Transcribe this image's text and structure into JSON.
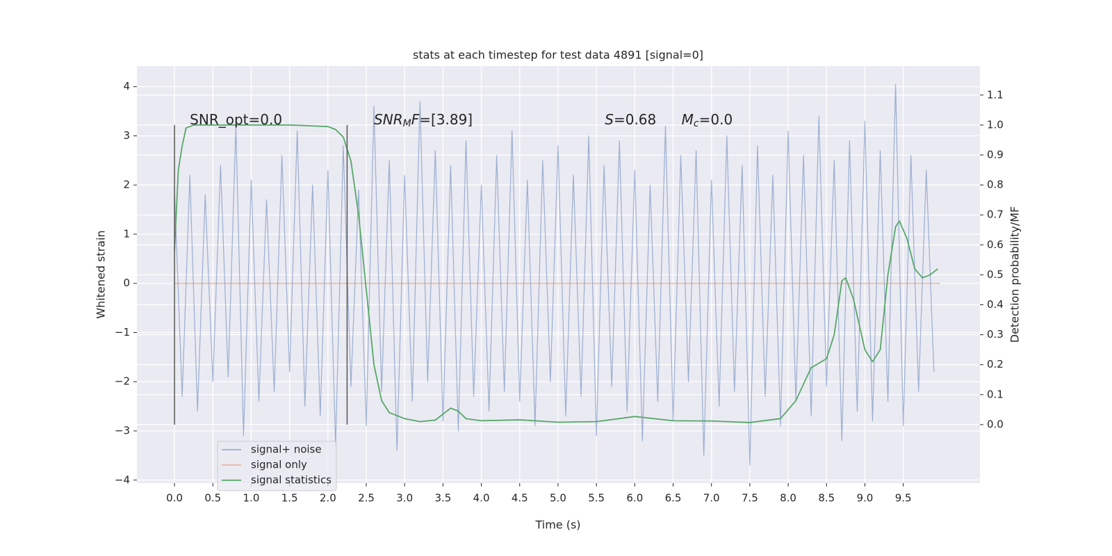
{
  "chart_data": {
    "type": "line",
    "title": "stats at each timestep for test data 4891 [signal=0]",
    "xlabel": "Time (s)",
    "ylabel": "Whitened strain",
    "y2label": "Detection probability/MF",
    "xlim": [
      -0.49,
      10.5
    ],
    "ylim": [
      -4.06,
      4.42
    ],
    "y2lim": [
      -0.195,
      1.197
    ],
    "grid": true,
    "legend": "lower left",
    "xticks": [
      {
        "value": 0,
        "label": "0.0"
      },
      {
        "value": 0.5,
        "label": "0.5"
      },
      {
        "value": 1,
        "label": "1.0"
      },
      {
        "value": 1.5,
        "label": "1.5"
      },
      {
        "value": 2,
        "label": "2.0"
      },
      {
        "value": 2.5,
        "label": "2.5"
      },
      {
        "value": 3,
        "label": "3.0"
      },
      {
        "value": 3.5,
        "label": "3.5"
      },
      {
        "value": 4,
        "label": "4.0"
      },
      {
        "value": 4.5,
        "label": "4.5"
      },
      {
        "value": 5,
        "label": "5.0"
      },
      {
        "value": 5.5,
        "label": "5.5"
      },
      {
        "value": 6,
        "label": "6.0"
      },
      {
        "value": 6.5,
        "label": "6.5"
      },
      {
        "value": 7,
        "label": "7.0"
      },
      {
        "value": 7.5,
        "label": "7.5"
      },
      {
        "value": 8,
        "label": "8.0"
      },
      {
        "value": 8.5,
        "label": "8.5"
      },
      {
        "value": 9,
        "label": "9.0"
      },
      {
        "value": 9.5,
        "label": "9.5"
      }
    ],
    "yticks": [
      {
        "value": -4,
        "label": "−4"
      },
      {
        "value": -3,
        "label": "−3"
      },
      {
        "value": -2,
        "label": "−2"
      },
      {
        "value": -1,
        "label": "−1"
      },
      0,
      1,
      2,
      3,
      4
    ],
    "y2ticks": [
      {
        "value": 0,
        "label": "0.0"
      },
      {
        "value": 0.1,
        "label": "0.1"
      },
      {
        "value": 0.2,
        "label": "0.2"
      },
      {
        "value": 0.3,
        "label": "0.3"
      },
      {
        "value": 0.4,
        "label": "0.4"
      },
      {
        "value": 0.5,
        "label": "0.5"
      },
      {
        "value": 0.6,
        "label": "0.6"
      },
      {
        "value": 0.7,
        "label": "0.7"
      },
      {
        "value": 0.8,
        "label": "0.8"
      },
      {
        "value": 0.9,
        "label": "0.9"
      },
      {
        "value": 1,
        "label": "1.0"
      },
      {
        "value": 1.1,
        "label": "1.1"
      }
    ],
    "series": [
      {
        "name": "signal+ noise",
        "color": "#4c72b0",
        "alpha": 0.5,
        "x": [
          0,
          0.1,
          0.2,
          0.3,
          0.4,
          0.5,
          0.6,
          0.7,
          0.8,
          0.9,
          1,
          1.1,
          1.2,
          1.3,
          1.4,
          1.5,
          1.6,
          1.7,
          1.8,
          1.9,
          2,
          2.1,
          2.2,
          2.3,
          2.4,
          2.5,
          2.6,
          2.7,
          2.8,
          2.9,
          3,
          3.1,
          3.2,
          3.3,
          3.4,
          3.5,
          3.6,
          3.7,
          3.8,
          3.9,
          4,
          4.1,
          4.2,
          4.3,
          4.4,
          4.5,
          4.6,
          4.7,
          4.8,
          4.9,
          5,
          5.1,
          5.2,
          5.3,
          5.4,
          5.5,
          5.6,
          5.7,
          5.8,
          5.9,
          6,
          6.1,
          6.2,
          6.3,
          6.4,
          6.5,
          6.6,
          6.7,
          6.8,
          6.9,
          7,
          7.1,
          7.2,
          7.3,
          7.4,
          7.5,
          7.6,
          7.7,
          7.8,
          7.9,
          8,
          8.1,
          8.2,
          8.3,
          8.4,
          8.5,
          8.6,
          8.7,
          8.8,
          8.9,
          9,
          9.1,
          9.2,
          9.3,
          9.4,
          9.5,
          9.6,
          9.7,
          9.8,
          9.9
        ],
        "values": [
          1.9,
          -2.3,
          2.2,
          -2.6,
          1.8,
          -2.0,
          2.4,
          -1.9,
          3.2,
          -3.1,
          2.1,
          -2.4,
          1.7,
          -2.2,
          2.6,
          -1.8,
          3.1,
          -2.5,
          2.0,
          -2.7,
          2.3,
          -3.3,
          2.8,
          -2.1,
          1.9,
          -2.9,
          3.6,
          -2.2,
          2.5,
          -3.4,
          2.2,
          -2.4,
          3.7,
          -2.0,
          2.7,
          -2.8,
          2.4,
          -3.0,
          2.9,
          -2.3,
          2.0,
          -2.6,
          2.6,
          -2.2,
          3.1,
          -2.4,
          2.1,
          -2.9,
          2.5,
          -2.0,
          2.8,
          -2.7,
          2.2,
          -2.3,
          3.0,
          -3.1,
          2.4,
          -2.1,
          2.9,
          -2.6,
          2.3,
          -3.2,
          2.0,
          -2.4,
          3.2,
          -2.8,
          2.6,
          -2.0,
          2.7,
          -3.5,
          2.1,
          -2.5,
          3.0,
          -2.2,
          2.4,
          -3.7,
          2.8,
          -2.3,
          2.2,
          -2.9,
          3.1,
          -2.4,
          2.6,
          -2.7,
          3.4,
          -2.1,
          2.5,
          -3.2,
          2.9,
          -2.6,
          3.3,
          -2.8,
          2.7,
          -2.4,
          4.05,
          -2.9,
          2.6,
          -2.2,
          2.3,
          -1.8
        ]
      },
      {
        "name": "signal only",
        "color": "#dd8452",
        "alpha": 0.5,
        "x": [
          0,
          9.98
        ],
        "values": [
          0,
          0
        ]
      },
      {
        "name": "signal statistics",
        "color": "#55a868",
        "alpha": 1,
        "axis": "y2",
        "x": [
          0,
          0.05,
          0.1,
          0.15,
          0.25,
          0.5,
          1,
          1.5,
          2,
          2.1,
          2.2,
          2.3,
          2.4,
          2.5,
          2.6,
          2.7,
          2.8,
          3,
          3.2,
          3.4,
          3.6,
          3.7,
          3.8,
          4,
          4.5,
          5,
          5.5,
          6,
          6.5,
          7,
          7.5,
          7.9,
          8.1,
          8.3,
          8.5,
          8.6,
          8.7,
          8.75,
          8.85,
          9,
          9.1,
          9.2,
          9.3,
          9.4,
          9.45,
          9.55,
          9.65,
          9.75,
          9.85,
          9.95
        ],
        "values": [
          0.58,
          0.85,
          0.93,
          0.99,
          1.0,
          1.0,
          1.0,
          1.0,
          0.995,
          0.985,
          0.96,
          0.88,
          0.7,
          0.45,
          0.2,
          0.08,
          0.04,
          0.02,
          0.01,
          0.015,
          0.055,
          0.045,
          0.02,
          0.013,
          0.016,
          0.008,
          0.01,
          0.027,
          0.013,
          0.012,
          0.007,
          0.02,
          0.08,
          0.19,
          0.22,
          0.3,
          0.48,
          0.49,
          0.42,
          0.25,
          0.21,
          0.25,
          0.5,
          0.66,
          0.68,
          0.62,
          0.52,
          0.49,
          0.5,
          0.52
        ]
      }
    ],
    "vlines": {
      "x": [
        0,
        2.25
      ],
      "y2range": [
        0,
        1
      ],
      "color": "#555555"
    },
    "annotations": [
      {
        "x": 0.2,
        "y": 3.32,
        "parts": [
          {
            "text": "SNR_opt=0.0"
          }
        ]
      },
      {
        "x": 2.6,
        "y": 3.32,
        "parts": [
          {
            "text": "SNR",
            "style": "italic"
          },
          {
            "text": "M",
            "style": "subscript"
          },
          {
            "text": "F",
            "style": "italic"
          },
          {
            "text": "=[3.89]"
          }
        ]
      },
      {
        "x": 5.61,
        "y": 3.32,
        "parts": [
          {
            "text": "S",
            "style": "italic"
          },
          {
            "text": "=0.68"
          }
        ]
      },
      {
        "x": 6.61,
        "y": 3.32,
        "parts": [
          {
            "text": "M",
            "style": "italic"
          },
          {
            "text": "c",
            "style": "subscript"
          },
          {
            "text": "=0.0"
          }
        ]
      }
    ]
  }
}
